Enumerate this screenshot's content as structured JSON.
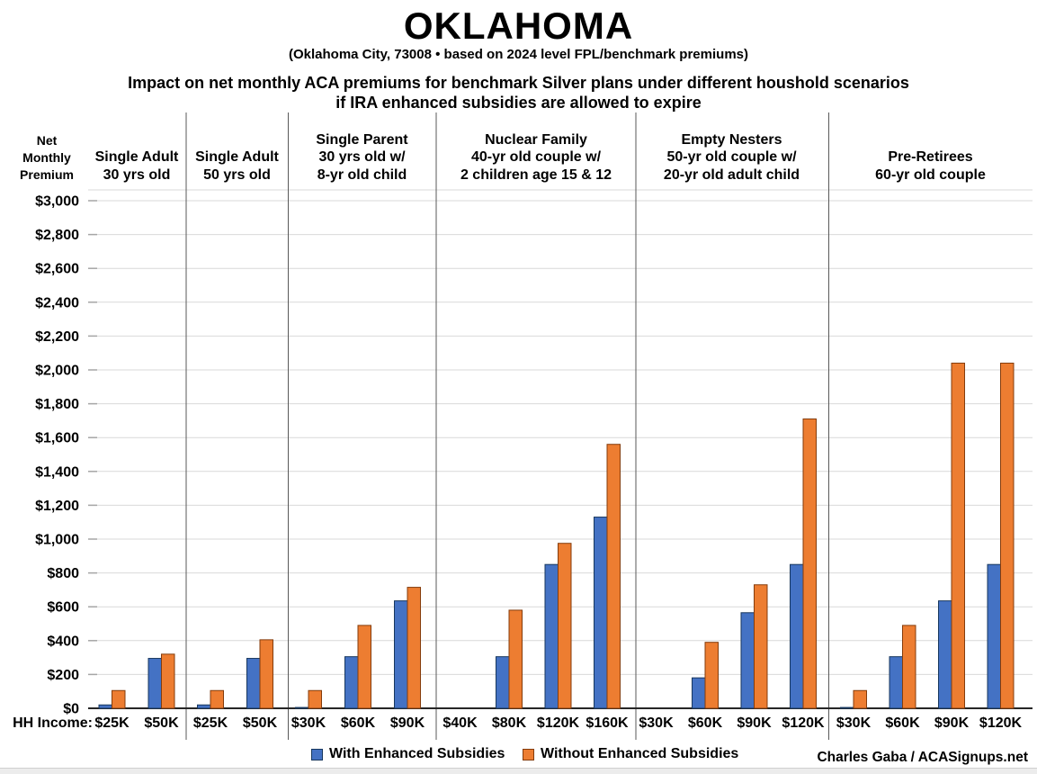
{
  "title": "OKLAHOMA",
  "subtitle": "(Oklahoma City, 73008 • based on 2024 level FPL/benchmark premiums)",
  "heading_line1": "Impact on net monthly ACA premiums for benchmark Silver plans under different houshold scenarios",
  "heading_line2": "if IRA enhanced subsidies are allowed to expire",
  "y_axis_label": "Net\nMonthly\nPremium",
  "hh_income_prefix": "HH Income:",
  "legend": {
    "with_label": "With Enhanced Subsidies",
    "without_label": "Without Enhanced Subsidies"
  },
  "credit": "Charles Gaba / ACASignups.net",
  "colors": {
    "with_subsidies": "#4472C4",
    "with_subsidies_border": "#17375E",
    "without_subsidies": "#ED7D31",
    "without_subsidies_border": "#843C0C",
    "gridline": "#D9D9D9",
    "tick": "#A6A6A6",
    "divider": "#595959",
    "axis": "#262626"
  },
  "chart_data": {
    "type": "bar",
    "title": "OKLAHOMA — Impact on net monthly ACA premiums for benchmark Silver plans under different houshold scenarios if IRA enhanced subsidies are allowed to expire",
    "ylabel": "Net Monthly Premium",
    "xlabel": "HH Income",
    "ylim": [
      0,
      3000
    ],
    "ytick_step": 200,
    "grid": true,
    "legend_position": "bottom",
    "series": [
      "With Enhanced Subsidies",
      "Without Enhanced Subsidies"
    ],
    "groups": [
      {
        "label": "Single Adult\n30 yrs old",
        "incomes": [
          "$25K",
          "$50K"
        ],
        "with_enhanced": [
          20,
          295
        ],
        "without_enhanced": [
          105,
          320
        ]
      },
      {
        "label": "Single Adult\n50 yrs old",
        "incomes": [
          "$25K",
          "$50K"
        ],
        "with_enhanced": [
          20,
          295
        ],
        "without_enhanced": [
          105,
          405
        ]
      },
      {
        "label": "Single Parent\n30 yrs old w/\n8-yr old child",
        "incomes": [
          "$30K",
          "$60K",
          "$90K"
        ],
        "with_enhanced": [
          5,
          305,
          635
        ],
        "without_enhanced": [
          105,
          490,
          715
        ]
      },
      {
        "label": "Nuclear Family\n40-yr old couple w/\n2 children age 15 & 12",
        "incomes": [
          "$40K",
          "$80K",
          "$120K",
          "$160K"
        ],
        "with_enhanced": [
          0,
          305,
          850,
          1130
        ],
        "without_enhanced": [
          0,
          580,
          975,
          1560
        ]
      },
      {
        "label": "Empty Nesters\n50-yr old couple w/\n20-yr old adult child",
        "incomes": [
          "$30K",
          "$60K",
          "$90K",
          "$120K"
        ],
        "with_enhanced": [
          0,
          180,
          565,
          850
        ],
        "without_enhanced": [
          0,
          390,
          730,
          1710
        ]
      },
      {
        "label": "Pre-Retirees\n60-yr old couple",
        "incomes": [
          "$30K",
          "$60K",
          "$90K",
          "$120K"
        ],
        "with_enhanced": [
          5,
          305,
          635,
          850
        ],
        "without_enhanced": [
          105,
          490,
          2040,
          2040
        ]
      }
    ]
  }
}
